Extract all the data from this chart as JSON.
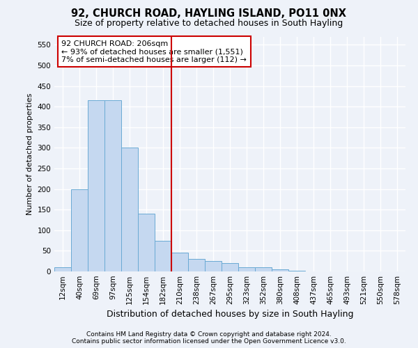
{
  "title": "92, CHURCH ROAD, HAYLING ISLAND, PO11 0NX",
  "subtitle": "Size of property relative to detached houses in South Hayling",
  "xlabel": "Distribution of detached houses by size in South Hayling",
  "ylabel": "Number of detached properties",
  "footnote1": "Contains HM Land Registry data © Crown copyright and database right 2024.",
  "footnote2": "Contains public sector information licensed under the Open Government Licence v3.0.",
  "annotation_line1": "92 CHURCH ROAD: 206sqm",
  "annotation_line2": "← 93% of detached houses are smaller (1,551)",
  "annotation_line3": "7% of semi-detached houses are larger (112) →",
  "bar_color": "#c5d8f0",
  "bar_edge_color": "#6aaad4",
  "vline_color": "#cc0000",
  "vline_x_index": 7,
  "categories": [
    "12sqm",
    "40sqm",
    "69sqm",
    "97sqm",
    "125sqm",
    "154sqm",
    "182sqm",
    "210sqm",
    "238sqm",
    "267sqm",
    "295sqm",
    "323sqm",
    "352sqm",
    "380sqm",
    "408sqm",
    "437sqm",
    "465sqm",
    "493sqm",
    "521sqm",
    "550sqm",
    "578sqm"
  ],
  "values": [
    10,
    200,
    415,
    415,
    300,
    140,
    75,
    45,
    30,
    25,
    20,
    10,
    10,
    5,
    2,
    0,
    0,
    0,
    0,
    0,
    0
  ],
  "ylim": [
    0,
    570
  ],
  "yticks": [
    0,
    50,
    100,
    150,
    200,
    250,
    300,
    350,
    400,
    450,
    500,
    550
  ],
  "bg_color": "#eef2f9",
  "plot_bg_color": "#eef2f9",
  "grid_color": "#ffffff",
  "title_fontsize": 10.5,
  "subtitle_fontsize": 9,
  "ylabel_fontsize": 8,
  "xlabel_fontsize": 9,
  "tick_fontsize": 7.5,
  "annotation_fontsize": 8,
  "footnote_fontsize": 6.5,
  "figsize": [
    6.0,
    5.0
  ],
  "dpi": 100
}
